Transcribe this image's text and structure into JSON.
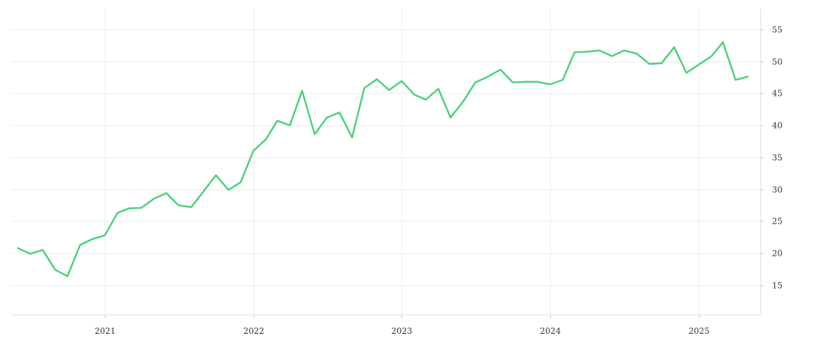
{
  "chart_data": {
    "type": "line",
    "title": "",
    "xlabel": "",
    "ylabel": "",
    "x_tick_labels": [
      "2021",
      "2022",
      "2023",
      "2024",
      "2025"
    ],
    "y_ticks": [
      15,
      20,
      25,
      30,
      35,
      40,
      45,
      50,
      55
    ],
    "ylim": [
      10.4,
      58.3
    ],
    "xlim": [
      "2020-05-15",
      "2025-06-01"
    ],
    "grid": true,
    "y_axis_position": "right",
    "series": [
      {
        "color": "#4cd17a",
        "points": [
          [
            "2020-06-01",
            20.8
          ],
          [
            "2020-07-01",
            19.9
          ],
          [
            "2020-08-01",
            20.5
          ],
          [
            "2020-09-01",
            17.4
          ],
          [
            "2020-10-01",
            16.4
          ],
          [
            "2020-11-01",
            21.3
          ],
          [
            "2020-12-01",
            22.2
          ],
          [
            "2021-01-01",
            22.8
          ],
          [
            "2021-02-01",
            26.3
          ],
          [
            "2021-03-01",
            27.0
          ],
          [
            "2021-04-01",
            27.1
          ],
          [
            "2021-05-01",
            28.5
          ],
          [
            "2021-06-01",
            29.4
          ],
          [
            "2021-07-01",
            27.5
          ],
          [
            "2021-08-01",
            27.2
          ],
          [
            "2021-09-01",
            29.7
          ],
          [
            "2021-10-01",
            32.2
          ],
          [
            "2021-11-01",
            29.9
          ],
          [
            "2021-12-01",
            31.1
          ],
          [
            "2022-01-01",
            36.0
          ],
          [
            "2022-02-01",
            37.8
          ],
          [
            "2022-03-01",
            40.7
          ],
          [
            "2022-04-01",
            40.0
          ],
          [
            "2022-05-01",
            45.4
          ],
          [
            "2022-06-01",
            38.6
          ],
          [
            "2022-07-01",
            41.2
          ],
          [
            "2022-08-01",
            42.0
          ],
          [
            "2022-09-01",
            38.1
          ],
          [
            "2022-10-01",
            45.8
          ],
          [
            "2022-11-01",
            47.2
          ],
          [
            "2022-12-01",
            45.5
          ],
          [
            "2023-01-01",
            46.9
          ],
          [
            "2023-02-01",
            44.8
          ],
          [
            "2023-03-01",
            44.0
          ],
          [
            "2023-04-01",
            45.7
          ],
          [
            "2023-05-01",
            41.2
          ],
          [
            "2023-06-01",
            43.7
          ],
          [
            "2023-07-01",
            46.7
          ],
          [
            "2023-08-01",
            47.6
          ],
          [
            "2023-09-01",
            48.7
          ],
          [
            "2023-10-01",
            46.7
          ],
          [
            "2023-11-01",
            46.8
          ],
          [
            "2023-12-01",
            46.8
          ],
          [
            "2024-01-01",
            46.4
          ],
          [
            "2024-02-01",
            47.1
          ],
          [
            "2024-03-01",
            51.4
          ],
          [
            "2024-04-01",
            51.5
          ],
          [
            "2024-05-01",
            51.7
          ],
          [
            "2024-06-01",
            50.8
          ],
          [
            "2024-07-01",
            51.7
          ],
          [
            "2024-08-01",
            51.2
          ],
          [
            "2024-09-01",
            49.6
          ],
          [
            "2024-10-01",
            49.7
          ],
          [
            "2024-11-01",
            52.2
          ],
          [
            "2024-12-01",
            48.2
          ],
          [
            "2025-01-01",
            49.5
          ],
          [
            "2025-02-01",
            50.8
          ],
          [
            "2025-03-01",
            53.0
          ],
          [
            "2025-04-01",
            47.1
          ],
          [
            "2025-05-01",
            47.6
          ]
        ]
      }
    ]
  }
}
